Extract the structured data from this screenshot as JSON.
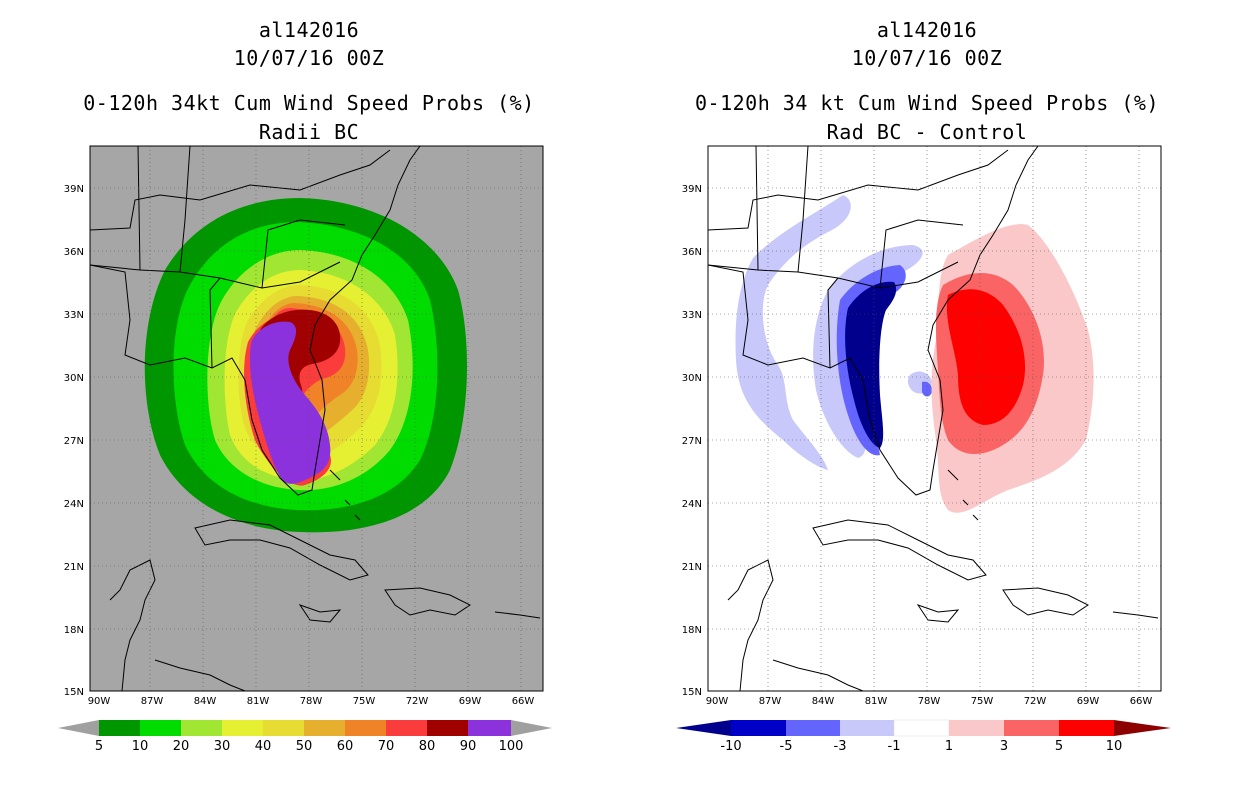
{
  "left": {
    "storm_id": "al142016",
    "datetime": "10/07/16 00Z",
    "product": "0-120h 34kt Cum Wind Speed Probs (%)",
    "subtitle": "Radii BC",
    "colorbar": {
      "labels": [
        "5",
        "10",
        "20",
        "30",
        "40",
        "50",
        "60",
        "70",
        "80",
        "90",
        "100"
      ],
      "colors": [
        "#009600",
        "#00dc00",
        "#a0e632",
        "#e6f032",
        "#e6dc32",
        "#e6af2d",
        "#f08228",
        "#fa3c3c",
        "#a00000",
        "#8c32dc"
      ],
      "under_color": "#a0a0a0",
      "over_color": "#a0a0a0"
    },
    "background_color": "#a6a6a6"
  },
  "right": {
    "storm_id": "al142016",
    "datetime": "10/07/16 00Z",
    "product": "0-120h 34 kt Cum Wind Speed Probs (%)",
    "subtitle": "Rad BC - Control",
    "colorbar": {
      "labels": [
        "-10",
        "-5",
        "-3",
        "-1",
        "1",
        "3",
        "5",
        "10"
      ],
      "colors": [
        "#0000c8",
        "#6464ff",
        "#c8c8fa",
        "#ffffff",
        "#fac8c8",
        "#fa6464",
        "#ff0000"
      ],
      "under_color": "#00008c",
      "over_color": "#8c0000"
    },
    "background_color": "#ffffff"
  },
  "axes": {
    "lat_labels": [
      "39N",
      "36N",
      "33N",
      "30N",
      "27N",
      "24N",
      "21N",
      "18N",
      "15N"
    ],
    "lon_labels": [
      "90W",
      "87W",
      "84W",
      "81W",
      "78W",
      "75W",
      "72W",
      "69W",
      "66W"
    ]
  }
}
